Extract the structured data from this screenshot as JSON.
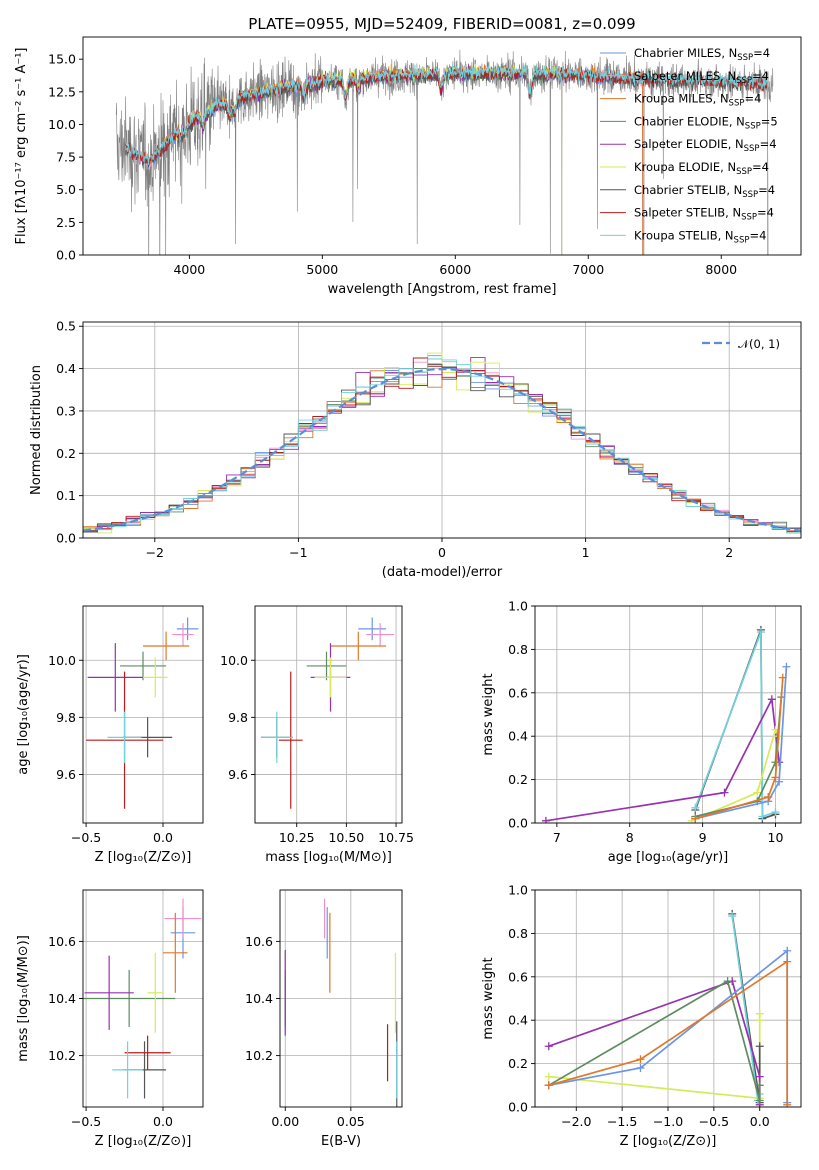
{
  "figure_title": "PLATE=0955, MJD=52409, FIBERID=0081, z=0.099",
  "colors": {
    "Chabrier MILES": "#6a96e6",
    "Salpeter MILES": "#ef8fd0",
    "Kroupa MILES": "#e07828",
    "Chabrier ELODIE": "#5e8c60",
    "Salpeter ELODIE": "#9830b0",
    "Kroupa ELODIE": "#d6ea5a",
    "Chabrier STELIB": "#555555",
    "Salpeter STELIB": "#b81c1c",
    "Kroupa STELIB": "#72d2dc",
    "gauss": "#5a8fd8",
    "grid": "#b0b0b0"
  },
  "chart_data": [
    {
      "id": "spectrum",
      "type": "line",
      "xlabel": "wavelength [Angstrom, rest frame]",
      "ylabel": "Flux [fλ10⁻¹⁷ erg cm⁻² s⁻¹ A⁻¹]",
      "xlim": [
        3200,
        8600
      ],
      "ylim": [
        0,
        16.7
      ],
      "xticks": [
        "4000",
        "5000",
        "6000",
        "7000",
        "8000"
      ],
      "yticks": [
        "0.0",
        "2.5",
        "5.0",
        "7.5",
        "10.0",
        "12.5",
        "15.0"
      ],
      "legend_position": "right",
      "legend": [
        {
          "pre": "Chabrier MILES, N",
          "sub": "SSP",
          "post": "=4",
          "key": "Chabrier MILES"
        },
        {
          "pre": "Salpeter MILES, N",
          "sub": "SSP",
          "post": "=4",
          "key": "Salpeter MILES"
        },
        {
          "pre": "Kroupa MILES, N",
          "sub": "SSP",
          "post": "=4",
          "key": "Kroupa MILES"
        },
        {
          "pre": "Chabrier ELODIE, N",
          "sub": "SSP",
          "post": "=5",
          "key": "Chabrier ELODIE"
        },
        {
          "pre": "Salpeter ELODIE, N",
          "sub": "SSP",
          "post": "=4",
          "key": "Salpeter ELODIE"
        },
        {
          "pre": "Kroupa ELODIE, N",
          "sub": "SSP",
          "post": "=4",
          "key": "Kroupa ELODIE"
        },
        {
          "pre": "Chabrier STELIB, N",
          "sub": "SSP",
          "post": "=4",
          "key": "Chabrier STELIB"
        },
        {
          "pre": "Salpeter STELIB, N",
          "sub": "SSP",
          "post": "=4",
          "key": "Salpeter STELIB"
        },
        {
          "pre": "Kroupa STELIB, N",
          "sub": "SSP",
          "post": "=4",
          "key": "Kroupa STELIB"
        }
      ],
      "continuum": [
        [
          3500,
          8.3
        ],
        [
          3700,
          7.2
        ],
        [
          3950,
          9.8
        ],
        [
          4200,
          11.4
        ],
        [
          4500,
          12.4
        ],
        [
          5000,
          13.3
        ],
        [
          5500,
          13.7
        ],
        [
          6000,
          13.9
        ],
        [
          6500,
          13.9
        ],
        [
          7000,
          13.8
        ],
        [
          7500,
          13.4
        ],
        [
          8000,
          13.3
        ],
        [
          8350,
          13.1
        ]
      ],
      "data_range": [
        3450,
        8390
      ],
      "model_ranges": {
        "MILES": [
          3520,
          7410
        ],
        "ELODIE": [
          3900,
          6800
        ],
        "STELIB": [
          3520,
          8350
        ]
      },
      "absorption_features": [
        [
          3934,
          0.5
        ],
        [
          3969,
          0.5
        ],
        [
          4102,
          0.8
        ],
        [
          4304,
          1.0
        ],
        [
          4341,
          0.8
        ],
        [
          4861,
          0.8
        ],
        [
          5175,
          1.2
        ],
        [
          5270,
          0.7
        ],
        [
          5893,
          1.0
        ],
        [
          6563,
          1.2
        ]
      ]
    },
    {
      "id": "residuals",
      "type": "histogram",
      "xlabel": "(data-model)/error",
      "ylabel": "Normed distribution",
      "xlim": [
        -2.5,
        2.5
      ],
      "ylim": [
        0,
        0.51
      ],
      "xticks": [
        {
          "v": -2,
          "t": "−2"
        },
        {
          "v": -1,
          "t": "−1"
        },
        {
          "v": 0,
          "t": "0"
        },
        {
          "v": 1,
          "t": "1"
        },
        {
          "v": 2,
          "t": "2"
        }
      ],
      "yticks": [
        "0.0",
        "0.1",
        "0.2",
        "0.3",
        "0.4",
        "0.5"
      ],
      "bin_width": 0.1,
      "legend_label": "𝒩(0, 1)",
      "legend_position": "upper right"
    },
    {
      "id": "age-vs-Z",
      "type": "errorbar",
      "xlabel": "Z [log₁₀(Z/Z⊙)]",
      "ylabel": "age  [log₁₀(age/yr)]",
      "xlim": [
        -0.52,
        0.26
      ],
      "ylim": [
        9.43,
        10.19
      ],
      "xticks": [
        {
          "v": -0.5,
          "t": "−0.5"
        },
        {
          "v": 0,
          "t": "0.0"
        }
      ],
      "yticks": [
        {
          "v": 9.6,
          "t": "9.6"
        },
        {
          "v": 9.8,
          "t": "9.8"
        },
        {
          "v": 10.0,
          "t": "10.0"
        }
      ],
      "points": [
        {
          "key": "Chabrier MILES",
          "x": 0.16,
          "y": 10.11,
          "xe": 0.07,
          "ye": 0.04
        },
        {
          "key": "Salpeter MILES",
          "x": 0.13,
          "y": 10.09,
          "xe": 0.07,
          "ye": 0.04
        },
        {
          "key": "Kroupa MILES",
          "x": 0.02,
          "y": 10.05,
          "xe": 0.15,
          "ye": 0.05
        },
        {
          "key": "Chabrier ELODIE",
          "x": -0.13,
          "y": 9.98,
          "xe": 0.15,
          "ye": 0.05
        },
        {
          "key": "Salpeter ELODIE",
          "x": -0.31,
          "y": 9.94,
          "xe": 0.18,
          "ye": 0.12
        },
        {
          "key": "Kroupa ELODIE",
          "x": -0.05,
          "y": 9.94,
          "xe": 0.08,
          "ye": 0.07
        },
        {
          "key": "Chabrier STELIB",
          "x": -0.1,
          "y": 9.73,
          "xe": 0.16,
          "ye": 0.07
        },
        {
          "key": "Salpeter STELIB",
          "x": -0.25,
          "y": 9.72,
          "xe": 0.25,
          "ye": 0.24
        },
        {
          "key": "Kroupa STELIB",
          "x": -0.25,
          "y": 9.73,
          "xe": 0.11,
          "ye": 0.09
        }
      ]
    },
    {
      "id": "age-vs-mass",
      "type": "errorbar",
      "xlabel": "mass [log₁₀(M/M⊙)]",
      "ylabel": "",
      "xlim": [
        10.04,
        10.78
      ],
      "ylim": [
        9.43,
        10.19
      ],
      "xticks": [
        {
          "v": 10.25,
          "t": "10.25"
        },
        {
          "v": 10.5,
          "t": "10.50"
        },
        {
          "v": 10.75,
          "t": "10.75"
        }
      ],
      "yticks": [
        {
          "v": 9.6,
          "t": "9.6"
        },
        {
          "v": 9.8,
          "t": "9.8"
        },
        {
          "v": 10.0,
          "t": "10.0"
        }
      ],
      "points": [
        {
          "key": "Chabrier MILES",
          "x": 10.63,
          "y": 10.11,
          "xe": 0.07,
          "ye": 0.04
        },
        {
          "key": "Salpeter MILES",
          "x": 10.67,
          "y": 10.09,
          "xe": 0.07,
          "ye": 0.04
        },
        {
          "key": "Kroupa MILES",
          "x": 10.56,
          "y": 10.05,
          "xe": 0.14,
          "ye": 0.05
        },
        {
          "key": "Chabrier ELODIE",
          "x": 10.4,
          "y": 9.98,
          "xe": 0.1,
          "ye": 0.05
        },
        {
          "key": "Salpeter ELODIE",
          "x": 10.42,
          "y": 9.94,
          "xe": 0.1,
          "ye": 0.12
        },
        {
          "key": "Kroupa ELODIE",
          "x": 10.42,
          "y": 9.94,
          "xe": 0.08,
          "ye": 0.07
        },
        {
          "key": "Chabrier STELIB",
          "x": 10.15,
          "y": 9.73,
          "xe": 0.08,
          "ye": 0.07
        },
        {
          "key": "Salpeter STELIB",
          "x": 10.22,
          "y": 9.72,
          "xe": 0.06,
          "ye": 0.24
        },
        {
          "key": "Kroupa STELIB",
          "x": 10.15,
          "y": 9.73,
          "xe": 0.08,
          "ye": 0.09
        }
      ]
    },
    {
      "id": "weight-vs-age",
      "type": "line",
      "xlabel": "age  [log₁₀(age/yr)]",
      "ylabel": "mass weight",
      "xlim": [
        6.7,
        10.35
      ],
      "ylim": [
        0,
        1.0
      ],
      "xticks": [
        {
          "v": 7,
          "t": "7"
        },
        {
          "v": 8,
          "t": "8"
        },
        {
          "v": 9,
          "t": "9"
        },
        {
          "v": 10,
          "t": "10"
        }
      ],
      "yticks": [
        {
          "v": 0,
          "t": "0.0"
        },
        {
          "v": 0.2,
          "t": "0.2"
        },
        {
          "v": 0.4,
          "t": "0.4"
        },
        {
          "v": 0.6,
          "t": "0.6"
        },
        {
          "v": 0.8,
          "t": "0.8"
        },
        {
          "v": 1.0,
          "t": "1.0"
        }
      ],
      "series": [
        {
          "key": "Chabrier STELIB",
          "x": [
            8.9,
            9.8,
            9.82,
            10.0
          ],
          "y": [
            0.06,
            0.89,
            0.02,
            0.04
          ]
        },
        {
          "key": "Kroupa STELIB",
          "x": [
            8.9,
            9.8,
            9.82,
            10.0
          ],
          "y": [
            0.07,
            0.88,
            0.03,
            0.05
          ]
        },
        {
          "key": "Salpeter ELODIE",
          "x": [
            6.85,
            9.3,
            9.95,
            10.05
          ],
          "y": [
            0.01,
            0.14,
            0.57,
            0.28
          ]
        },
        {
          "key": "Kroupa ELODIE",
          "x": [
            8.85,
            9.75,
            10.0,
            10.05
          ],
          "y": [
            0.01,
            0.14,
            0.43,
            0.4
          ]
        },
        {
          "key": "Chabrier ELODIE",
          "x": [
            8.9,
            9.75,
            10.0,
            10.08
          ],
          "y": [
            0.03,
            0.1,
            0.28,
            0.58
          ]
        },
        {
          "key": "Chabrier MILES",
          "x": [
            8.9,
            9.9,
            10.05,
            10.15
          ],
          "y": [
            0.02,
            0.1,
            0.19,
            0.72
          ]
        },
        {
          "key": "Kroupa MILES",
          "x": [
            8.9,
            9.9,
            10.0,
            10.1
          ],
          "y": [
            0.02,
            0.12,
            0.21,
            0.67
          ]
        }
      ]
    },
    {
      "id": "mass-vs-Z",
      "type": "errorbar",
      "xlabel": "Z [log₁₀(Z/Z⊙)]",
      "ylabel": "mass [log₁₀(M/M⊙)]",
      "xlim": [
        -0.52,
        0.26
      ],
      "ylim": [
        10.02,
        10.78
      ],
      "xticks": [
        {
          "v": -0.5,
          "t": "−0.5"
        },
        {
          "v": 0,
          "t": "0.0"
        }
      ],
      "yticks": [
        {
          "v": 10.2,
          "t": "10.2"
        },
        {
          "v": 10.4,
          "t": "10.4"
        },
        {
          "v": 10.6,
          "t": "10.6"
        }
      ],
      "points": [
        {
          "key": "Chabrier MILES",
          "x": 0.13,
          "y": 10.63,
          "xe": 0.08,
          "ye": 0.09
        },
        {
          "key": "Salpeter MILES",
          "x": 0.13,
          "y": 10.68,
          "xe": 0.12,
          "ye": 0.07
        },
        {
          "key": "Kroupa MILES",
          "x": 0.08,
          "y": 10.56,
          "xe": 0.08,
          "ye": 0.14
        },
        {
          "key": "Chabrier ELODIE",
          "x": -0.22,
          "y": 10.4,
          "xe": 0.3,
          "ye": 0.1
        },
        {
          "key": "Salpeter ELODIE",
          "x": -0.35,
          "y": 10.42,
          "xe": 0.16,
          "ye": 0.13
        },
        {
          "key": "Kroupa ELODIE",
          "x": -0.05,
          "y": 10.42,
          "xe": 0.05,
          "ye": 0.14
        },
        {
          "key": "Chabrier STELIB",
          "x": -0.12,
          "y": 10.15,
          "xe": 0.14,
          "ye": 0.1
        },
        {
          "key": "Salpeter STELIB",
          "x": -0.1,
          "y": 10.21,
          "xe": 0.15,
          "ye": 0.06
        },
        {
          "key": "Kroupa STELIB",
          "x": -0.23,
          "y": 10.15,
          "xe": 0.1,
          "ye": 0.1
        }
      ]
    },
    {
      "id": "mass-vs-EBV",
      "type": "errorbar",
      "xlabel": "E(B-V)",
      "ylabel": "",
      "xlim": [
        -0.004,
        0.089
      ],
      "ylim": [
        10.02,
        10.78
      ],
      "xticks": [
        {
          "v": 0,
          "t": "0.00"
        },
        {
          "v": 0.05,
          "t": "0.05"
        }
      ],
      "yticks": [
        {
          "v": 10.2,
          "t": "10.2"
        },
        {
          "v": 10.4,
          "t": "10.4"
        },
        {
          "v": 10.6,
          "t": "10.6"
        }
      ],
      "points": [
        {
          "key": "Chabrier MILES",
          "x": 0.032,
          "y": 10.63,
          "xe": 0,
          "ye": 0.09
        },
        {
          "key": "Salpeter MILES",
          "x": 0.03,
          "y": 10.68,
          "xe": 0,
          "ye": 0.07
        },
        {
          "key": "Kroupa MILES",
          "x": 0.034,
          "y": 10.56,
          "xe": 0,
          "ye": 0.14
        },
        {
          "key": "Chabrier ELODIE",
          "x": 0.0,
          "y": 10.4,
          "xe": 0,
          "ye": 0.1
        },
        {
          "key": "Salpeter ELODIE",
          "x": 0.0,
          "y": 10.42,
          "xe": 0,
          "ye": 0.15
        },
        {
          "key": "Kroupa ELODIE",
          "x": 0.084,
          "y": 10.42,
          "xe": 0,
          "ye": 0.14
        },
        {
          "key": "Chabrier STELIB",
          "x": 0.085,
          "y": 10.15,
          "xe": 0,
          "ye": 0.17
        },
        {
          "key": "Salpeter STELIB",
          "x": 0.078,
          "y": 10.21,
          "xe": 0,
          "ye": 0.1
        },
        {
          "key": "Kroupa STELIB",
          "x": 0.085,
          "y": 10.15,
          "xe": 0,
          "ye": 0.1
        }
      ]
    },
    {
      "id": "weight-vs-Z",
      "type": "line",
      "xlabel": "Z [log₁₀(Z/Z⊙)]",
      "ylabel": "mass weight",
      "xlim": [
        -2.45,
        0.45
      ],
      "ylim": [
        0,
        1.0
      ],
      "xticks": [
        {
          "v": -2,
          "t": "−2.0"
        },
        {
          "v": -1.5,
          "t": "−1.5"
        },
        {
          "v": -1,
          "t": "−1.0"
        },
        {
          "v": -0.5,
          "t": "−0.5"
        },
        {
          "v": 0,
          "t": "0.0"
        }
      ],
      "yticks": [
        {
          "v": 0,
          "t": "0.0"
        },
        {
          "v": 0.2,
          "t": "0.2"
        },
        {
          "v": 0.4,
          "t": "0.4"
        },
        {
          "v": 0.6,
          "t": "0.6"
        },
        {
          "v": 0.8,
          "t": "0.8"
        },
        {
          "v": 1.0,
          "t": "1.0"
        }
      ],
      "series": [
        {
          "key": "Kroupa ELODIE",
          "x": [
            -2.3,
            0.0,
            0.0,
            0.0
          ],
          "y": [
            0.14,
            0.04,
            0.43,
            0.4
          ]
        },
        {
          "key": "Chabrier STELIB",
          "x": [
            -0.3,
            0.0,
            0.0
          ],
          "y": [
            0.89,
            0.02,
            0.28
          ]
        },
        {
          "key": "Kroupa STELIB",
          "x": [
            -0.3,
            -0.02,
            0.0
          ],
          "y": [
            0.88,
            0.03,
            0.06
          ]
        },
        {
          "key": "Salpeter ELODIE",
          "x": [
            -2.3,
            -0.3,
            0.0,
            0.0
          ],
          "y": [
            0.28,
            0.58,
            0.14,
            0.01
          ]
        },
        {
          "key": "Chabrier ELODIE",
          "x": [
            -2.3,
            -0.35,
            0.0,
            0.0
          ],
          "y": [
            0.1,
            0.58,
            0.03,
            0.1
          ]
        },
        {
          "key": "Chabrier MILES",
          "x": [
            -2.3,
            -1.3,
            0.3,
            0.3
          ],
          "y": [
            0.1,
            0.18,
            0.72,
            0.02
          ]
        },
        {
          "key": "Kroupa MILES",
          "x": [
            -2.3,
            -1.3,
            0.3,
            0.3
          ],
          "y": [
            0.1,
            0.22,
            0.67,
            0.01
          ]
        }
      ]
    }
  ]
}
